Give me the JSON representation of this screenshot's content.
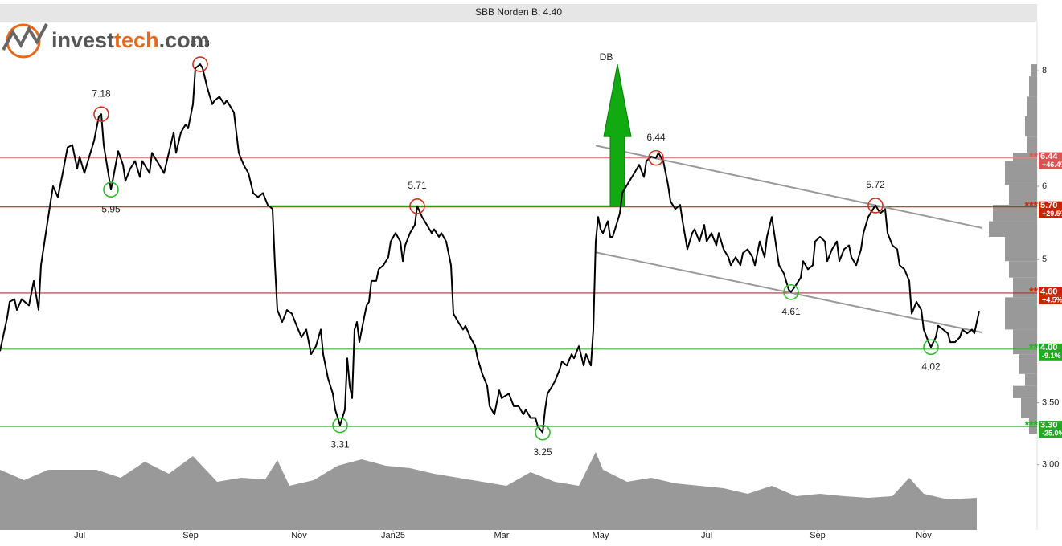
{
  "chart_data": {
    "type": "line",
    "title": "SBB Norden B: 4.40",
    "logo": [
      {
        "text": "invest",
        "color": "#555555"
      },
      {
        "text": "tech",
        "color": "#e8681c"
      },
      {
        "text": ".com",
        "color": "#555555"
      }
    ],
    "color": "#000000",
    "log_y": true,
    "xlim": [
      0,
      430
    ],
    "ylim": [
      2.55,
      9.04
    ],
    "xticks": [
      {
        "value": 33,
        "label": "Jul"
      },
      {
        "value": 79,
        "label": "Sep"
      },
      {
        "value": 124,
        "label": "Nov"
      },
      {
        "value": 163,
        "label": "Jan25"
      },
      {
        "value": 208,
        "label": "Mar"
      },
      {
        "value": 249,
        "label": "May"
      },
      {
        "value": 293,
        "label": "Jul"
      },
      {
        "value": 339,
        "label": "Sep"
      },
      {
        "value": 383,
        "label": "Nov"
      }
    ],
    "yticks": [
      8,
      6,
      5,
      {
        "value": 3.5,
        "label": "3.50"
      },
      {
        "value": 3,
        "label": "3.00"
      }
    ],
    "x": [
      0,
      3,
      4,
      6,
      7,
      9,
      12,
      14,
      16,
      17,
      19,
      21,
      22,
      24,
      26,
      28,
      30,
      32,
      33,
      35,
      37,
      39,
      41,
      42,
      43,
      46,
      47,
      49,
      51,
      52,
      54,
      56,
      58,
      59,
      62,
      63,
      66,
      68,
      70,
      72,
      73,
      75,
      77,
      78,
      80,
      81,
      83,
      84,
      86,
      88,
      89,
      91,
      93,
      94,
      97,
      99,
      101,
      103,
      105,
      107,
      109,
      111,
      113,
      114,
      115,
      117,
      119,
      121,
      123,
      125,
      127,
      129,
      131,
      133,
      134,
      136,
      138,
      139,
      141,
      143,
      144,
      145,
      146,
      147,
      148,
      149,
      151,
      152,
      153,
      154,
      156,
      157,
      159,
      161,
      162,
      164,
      166,
      167,
      168,
      170,
      172,
      173,
      175,
      177,
      179,
      180,
      182,
      183,
      185,
      187,
      188,
      190,
      192,
      193,
      195,
      197,
      198,
      200,
      202,
      203,
      205,
      207,
      208,
      211,
      213,
      215,
      217,
      218,
      220,
      222,
      223,
      225,
      226,
      227,
      229,
      230,
      232,
      233,
      235,
      237,
      238,
      240,
      242,
      243,
      245,
      246,
      247,
      248,
      249,
      250,
      252,
      253,
      254,
      255,
      257,
      258,
      260,
      262,
      263,
      265,
      267,
      268,
      270,
      272,
      273,
      275,
      277,
      278,
      280,
      282,
      283,
      285,
      287,
      288,
      290,
      292,
      293,
      295,
      297,
      298,
      300,
      302,
      303,
      305,
      307,
      308,
      310,
      312,
      313,
      315,
      317,
      318,
      320,
      322,
      323,
      325,
      327,
      328,
      330,
      332,
      333,
      335,
      337,
      338,
      340,
      342,
      343,
      345,
      347,
      348,
      350,
      352,
      353,
      355,
      357,
      358,
      360,
      362,
      363,
      365,
      367,
      368,
      370,
      372,
      373,
      375,
      377,
      378,
      380,
      382,
      383,
      385,
      386,
      388,
      389,
      391,
      393,
      394,
      396,
      398,
      399,
      401,
      403,
      404,
      406
    ],
    "values": [
      3.98,
      4.33,
      4.5,
      4.53,
      4.41,
      4.53,
      4.46,
      4.74,
      4.41,
      4.93,
      5.34,
      5.78,
      6.0,
      5.84,
      6.2,
      6.61,
      6.65,
      6.27,
      6.46,
      6.2,
      6.46,
      6.72,
      7.14,
      7.18,
      6.65,
      5.95,
      6.14,
      6.55,
      6.33,
      6.08,
      6.27,
      6.39,
      6.14,
      6.39,
      6.2,
      6.52,
      6.33,
      6.2,
      6.52,
      6.86,
      6.52,
      6.86,
      7.0,
      6.93,
      7.36,
      8.05,
      8.13,
      8.05,
      7.66,
      7.36,
      7.43,
      7.5,
      7.36,
      7.43,
      7.21,
      6.52,
      6.33,
      6.2,
      5.9,
      5.84,
      5.9,
      5.73,
      5.67,
      4.93,
      4.41,
      4.28,
      4.41,
      4.37,
      4.24,
      4.12,
      4.2,
      3.95,
      4.03,
      4.2,
      3.95,
      3.72,
      3.58,
      3.44,
      3.31,
      3.44,
      3.91,
      3.65,
      3.54,
      4.2,
      4.28,
      4.07,
      4.33,
      4.46,
      4.5,
      4.74,
      4.74,
      4.88,
      4.93,
      5.03,
      5.23,
      5.34,
      5.23,
      4.98,
      5.18,
      5.34,
      5.45,
      5.71,
      5.56,
      5.45,
      5.34,
      5.39,
      5.29,
      5.34,
      5.23,
      4.93,
      4.37,
      4.28,
      4.2,
      4.24,
      4.12,
      4.03,
      3.91,
      3.76,
      3.65,
      3.47,
      3.4,
      3.61,
      3.54,
      3.58,
      3.47,
      3.47,
      3.4,
      3.44,
      3.37,
      3.37,
      3.3,
      3.25,
      3.44,
      3.58,
      3.65,
      3.69,
      3.8,
      3.88,
      3.84,
      3.95,
      3.91,
      4.03,
      3.84,
      3.95,
      3.84,
      4.2,
      5.23,
      5.56,
      5.39,
      5.34,
      5.5,
      5.29,
      5.29,
      5.39,
      5.61,
      5.9,
      6.02,
      6.14,
      6.2,
      6.33,
      6.14,
      6.39,
      6.46,
      6.44,
      6.52,
      6.39,
      6.02,
      5.78,
      5.67,
      5.73,
      5.5,
      5.13,
      5.34,
      5.39,
      5.23,
      5.45,
      5.23,
      5.34,
      5.18,
      5.34,
      5.13,
      5.03,
      4.93,
      5.03,
      4.93,
      5.08,
      5.13,
      5.03,
      4.93,
      5.23,
      5.03,
      5.29,
      5.56,
      5.13,
      4.93,
      4.83,
      4.64,
      4.61,
      4.69,
      4.78,
      4.98,
      4.88,
      4.93,
      5.23,
      5.29,
      5.23,
      4.98,
      5.13,
      5.23,
      4.98,
      5.13,
      5.18,
      5.03,
      4.93,
      5.13,
      5.34,
      5.56,
      5.67,
      5.72,
      5.61,
      5.67,
      5.34,
      5.18,
      5.13,
      4.93,
      4.88,
      4.74,
      4.37,
      4.5,
      4.41,
      4.2,
      4.07,
      4.02,
      4.12,
      4.24,
      4.2,
      4.16,
      4.07,
      4.07,
      4.12,
      4.2,
      4.16,
      4.2,
      4.16,
      4.4
    ],
    "volume": {
      "color": "#999999",
      "ylim": [
        0,
        100
      ],
      "x": [
        0,
        10,
        20,
        30,
        40,
        50,
        60,
        70,
        80,
        90,
        100,
        110,
        115,
        120,
        130,
        140,
        150,
        160,
        170,
        180,
        190,
        200,
        210,
        220,
        230,
        240,
        247,
        250,
        260,
        270,
        280,
        290,
        300,
        310,
        320,
        330,
        340,
        350,
        360,
        370,
        377,
        383,
        393,
        405
      ],
      "values": [
        75,
        62,
        75,
        75,
        75,
        65,
        85,
        70,
        92,
        60,
        65,
        63,
        87,
        55,
        62,
        80,
        88,
        80,
        77,
        70,
        65,
        60,
        55,
        72,
        60,
        55,
        97,
        75,
        60,
        65,
        58,
        55,
        52,
        45,
        55,
        42,
        45,
        42,
        40,
        42,
        65,
        45,
        38,
        40
      ]
    },
    "profile": {
      "color": "#999999",
      "bins": [
        8.13,
        7.89,
        7.5,
        7.14,
        6.79,
        6.52,
        6.39,
        6.02,
        5.73,
        5.5,
        5.29,
        4.98,
        4.78,
        4.55,
        4.2,
        3.95,
        3.76,
        3.65,
        3.54,
        3.37,
        3.24
      ],
      "counts": [
        8,
        10,
        12,
        15,
        12,
        30,
        40,
        35,
        55,
        60,
        40,
        35,
        30,
        40,
        30,
        22,
        15,
        30,
        20,
        10
      ]
    },
    "levels": [
      {
        "value": 6.44,
        "stars": "**",
        "change": "+46.4%",
        "color": "#d9534f",
        "line_color": "#e08a88"
      },
      {
        "value": 5.7,
        "label": "5.70",
        "stars": "***",
        "change": "+29.5%",
        "color": "#cc2200",
        "line_color": "#cc2200"
      },
      {
        "value": 4.6,
        "label": "4.60",
        "stars": "**",
        "change": "+4.5%",
        "color": "#cc2200",
        "line_color": "#b03030"
      },
      {
        "value": 4,
        "label": "4.00",
        "stars": "**",
        "change": "-9.1%",
        "color": "#22aa22",
        "line_color": "#33bb33"
      },
      {
        "value": 3.3,
        "label": "3.30",
        "stars": "***",
        "change": "-25.0%",
        "color": "#22aa22",
        "line_color": "#22aa22"
      }
    ],
    "tops": {
      "color": "#cc3322",
      "x": [
        42,
        83,
        173,
        272,
        363
      ],
      "values": [
        7.18,
        8.13,
        5.71,
        6.44,
        5.72
      ]
    },
    "bottoms": {
      "color": "#33bb33",
      "x": [
        46,
        141,
        225,
        328,
        386
      ],
      "values": [
        5.95,
        3.31,
        3.25,
        4.61,
        4.02
      ]
    },
    "trend_lines": {
      "color": "#999999",
      "lines": [
        {
          "x": [
            247,
            407
          ],
          "values": [
            6.64,
            5.41
          ]
        },
        {
          "x": [
            247,
            407
          ],
          "values": [
            5.09,
            4.17
          ]
        }
      ]
    },
    "formation": {
      "color": "#22aa22",
      "x": [
        112,
        257
      ],
      "values": [
        5.71,
        5.71
      ]
    },
    "signal": {
      "label": "DB",
      "color": "#11aa11",
      "x": 256,
      "values": [
        5.71,
        8.13
      ]
    }
  }
}
